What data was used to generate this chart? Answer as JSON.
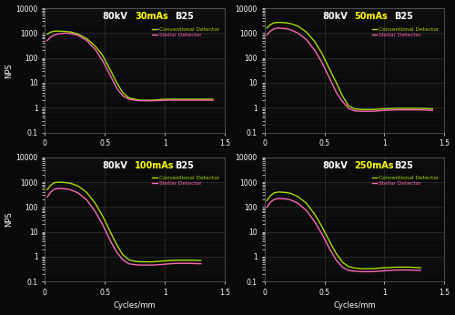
{
  "background_color": "#0a0a0a",
  "text_color": "#ffffff",
  "grid_color": "#333333",
  "conv_color": "#aadd00",
  "stellar_color": "#ff69b4",
  "title_color_kv": "#ffffff",
  "title_color_mas": "#ffff00",
  "title_color_b": "#ffffff",
  "subplots": [
    {
      "title_kv": "80kV",
      "title_mas": "30mAs",
      "title_b": "B25",
      "conv_x": [
        0.02,
        0.05,
        0.08,
        0.12,
        0.18,
        0.22,
        0.28,
        0.35,
        0.42,
        0.48,
        0.55,
        0.6,
        0.65,
        0.7,
        0.75,
        0.8,
        0.9,
        1.0,
        1.1,
        1.2,
        1.3,
        1.4
      ],
      "conv_y": [
        900,
        1100,
        1200,
        1200,
        1150,
        1100,
        900,
        600,
        300,
        130,
        30,
        10,
        4,
        2.5,
        2.2,
        2.0,
        2.0,
        2.2,
        2.2,
        2.2,
        2.2,
        2.2
      ],
      "stellar_x": [
        0.02,
        0.05,
        0.08,
        0.12,
        0.18,
        0.22,
        0.28,
        0.35,
        0.42,
        0.48,
        0.55,
        0.6,
        0.65,
        0.7,
        0.75,
        0.8,
        0.9,
        1.0,
        1.1,
        1.2,
        1.3,
        1.4
      ],
      "stellar_y": [
        500,
        700,
        850,
        950,
        1000,
        950,
        800,
        500,
        220,
        80,
        18,
        6,
        3,
        2.2,
        2.0,
        1.9,
        1.9,
        2.0,
        2.0,
        2.0,
        2.0,
        2.0
      ]
    },
    {
      "title_kv": "80kV",
      "title_mas": "50mAs",
      "title_b": "B25",
      "conv_x": [
        0.02,
        0.05,
        0.08,
        0.12,
        0.18,
        0.22,
        0.28,
        0.35,
        0.42,
        0.48,
        0.55,
        0.6,
        0.65,
        0.7,
        0.75,
        0.8,
        0.9,
        1.0,
        1.1,
        1.2,
        1.3,
        1.4
      ],
      "conv_y": [
        1600,
        2200,
        2600,
        2700,
        2600,
        2400,
        1900,
        1100,
        450,
        150,
        30,
        10,
        3,
        1.2,
        0.9,
        0.85,
        0.85,
        0.9,
        0.95,
        0.95,
        0.95,
        0.9
      ],
      "stellar_x": [
        0.02,
        0.05,
        0.08,
        0.12,
        0.18,
        0.22,
        0.28,
        0.35,
        0.42,
        0.48,
        0.55,
        0.6,
        0.65,
        0.7,
        0.75,
        0.8,
        0.9,
        1.0,
        1.1,
        1.2,
        1.3,
        1.4
      ],
      "stellar_y": [
        850,
        1200,
        1500,
        1600,
        1500,
        1350,
        1000,
        550,
        200,
        65,
        13,
        4,
        1.8,
        0.95,
        0.75,
        0.72,
        0.72,
        0.78,
        0.82,
        0.82,
        0.82,
        0.78
      ]
    },
    {
      "title_kv": "80kV",
      "title_mas": "100mAs",
      "title_b": "B25",
      "conv_x": [
        0.02,
        0.05,
        0.08,
        0.12,
        0.18,
        0.22,
        0.28,
        0.35,
        0.42,
        0.48,
        0.55,
        0.6,
        0.65,
        0.7,
        0.75,
        0.8,
        0.9,
        1.0,
        1.1,
        1.2,
        1.3
      ],
      "conv_y": [
        500,
        750,
        950,
        1000,
        950,
        880,
        680,
        380,
        140,
        45,
        9,
        3,
        1.2,
        0.75,
        0.65,
        0.62,
        0.62,
        0.68,
        0.72,
        0.72,
        0.7
      ],
      "stellar_x": [
        0.02,
        0.05,
        0.08,
        0.12,
        0.18,
        0.22,
        0.28,
        0.35,
        0.42,
        0.48,
        0.55,
        0.6,
        0.65,
        0.7,
        0.75,
        0.8,
        0.9,
        1.0,
        1.1,
        1.2,
        1.3
      ],
      "stellar_y": [
        250,
        400,
        520,
        560,
        530,
        480,
        360,
        190,
        65,
        20,
        4,
        1.5,
        0.75,
        0.52,
        0.48,
        0.46,
        0.46,
        0.5,
        0.54,
        0.54,
        0.52
      ]
    },
    {
      "title_kv": "80kV",
      "title_mas": "250mAs",
      "title_b": "B25",
      "conv_x": [
        0.02,
        0.05,
        0.08,
        0.12,
        0.18,
        0.22,
        0.28,
        0.35,
        0.42,
        0.48,
        0.55,
        0.6,
        0.65,
        0.7,
        0.75,
        0.8,
        0.9,
        1.0,
        1.1,
        1.2,
        1.3
      ],
      "conv_y": [
        180,
        280,
        370,
        400,
        380,
        350,
        260,
        140,
        50,
        16,
        3.5,
        1.3,
        0.6,
        0.4,
        0.35,
        0.33,
        0.33,
        0.36,
        0.38,
        0.38,
        0.36
      ],
      "stellar_x": [
        0.02,
        0.05,
        0.08,
        0.12,
        0.18,
        0.22,
        0.28,
        0.35,
        0.42,
        0.48,
        0.55,
        0.6,
        0.65,
        0.7,
        0.75,
        0.8,
        0.9,
        1.0,
        1.1,
        1.2,
        1.3
      ],
      "stellar_y": [
        95,
        155,
        200,
        220,
        210,
        190,
        140,
        72,
        25,
        8,
        1.8,
        0.7,
        0.38,
        0.28,
        0.26,
        0.25,
        0.25,
        0.27,
        0.29,
        0.29,
        0.28
      ]
    }
  ],
  "xlabel": "Cycles/mm",
  "ylabel": "NPS",
  "xlim": [
    0,
    1.5
  ],
  "ylim_log": [
    0.1,
    10000
  ],
  "yticks": [
    0.1,
    1,
    10,
    100,
    1000,
    10000
  ],
  "ytick_labels": [
    "0.1",
    "1",
    "10",
    "100",
    "1000",
    "10000"
  ],
  "xticks": [
    0,
    0.5,
    1.0,
    1.5
  ],
  "xtick_labels": [
    "0",
    "0.5",
    "1",
    "1.5"
  ],
  "legend_conv": "Conventional Detector",
  "legend_stellar": "Stellar Detector"
}
